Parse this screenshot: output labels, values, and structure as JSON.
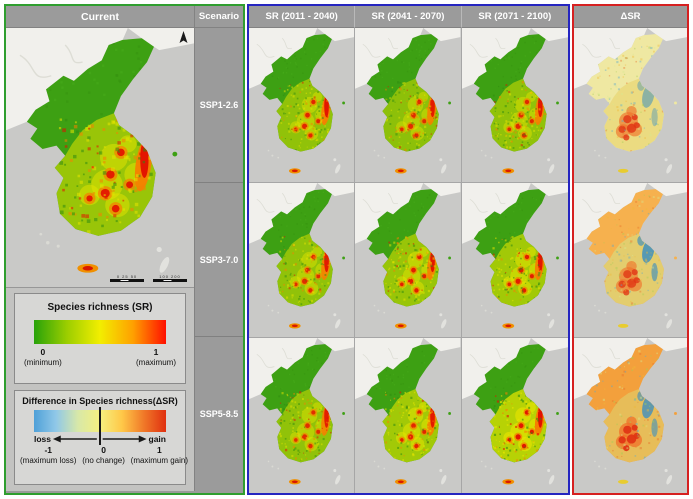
{
  "figure": {
    "headers": {
      "current": "Current",
      "scenario": "Scenario",
      "sr_periods": [
        "SR (2011 - 2040)",
        "SR (2041 - 2070)",
        "SR (2071 - 2100)"
      ],
      "dsr": "ΔSR"
    },
    "scenarios": [
      "SSP1-2.6",
      "SSP3-7.0",
      "SSP5-8.5"
    ],
    "panel_border_colors": {
      "current": "#2f9e2f",
      "sr": "#2525c0",
      "dsr": "#d62020"
    },
    "legend_sr": {
      "title": "Species richness (SR)",
      "min_value": "0",
      "min_label": "(minimum)",
      "max_value": "1",
      "max_label": "(maximum)",
      "gradient": [
        "#28a20a",
        "#9cce00",
        "#f2ee00",
        "#ffa000",
        "#ff1000"
      ]
    },
    "legend_dsr": {
      "title": "Difference in Species richness(ΔSR)",
      "loss_label": "loss",
      "gain_label": "gain",
      "min_value": "-1",
      "min_label": "(maximum loss)",
      "mid_value": "0",
      "mid_label": "(no change)",
      "max_value": "1",
      "max_label": "(maximum gain)",
      "gradient": [
        "#4fa0d8",
        "#90c8e8",
        "#d8e8a8",
        "#f5f080",
        "#ffc848",
        "#f07828",
        "#e03010"
      ]
    },
    "scalebar": {
      "left": "0 25 50",
      "right": "100 200"
    }
  },
  "maps": {
    "sea_color": "#c9c9c7",
    "outside_land_color": "#f1f0ec",
    "sr_palette": {
      "north": "#3da013",
      "yellow": "#e6e400",
      "orange": "#f58000",
      "red": "#e21000"
    },
    "dsr_palette": {
      "blue": "#3e8fbf",
      "red": "#e03414"
    },
    "current": {
      "kind": "sr",
      "yellow": 0.55,
      "east": 0.95,
      "spots": 0.9,
      "noise": 0.55
    },
    "rows": [
      {
        "cells": [
          {
            "kind": "sr",
            "yellow": 0.5,
            "east": 0.95,
            "spots": 0.85,
            "noise": 0.5
          },
          {
            "kind": "sr",
            "yellow": 0.48,
            "east": 0.9,
            "spots": 0.8,
            "noise": 0.48
          },
          {
            "kind": "sr",
            "yellow": 0.5,
            "east": 0.92,
            "spots": 0.82,
            "noise": 0.5
          },
          {
            "kind": "dsr",
            "north": "#efe8a2",
            "sk": "#e8d470",
            "blue": 0.55,
            "red": 0.8,
            "noise": 0.5
          }
        ]
      },
      {
        "cells": [
          {
            "kind": "sr",
            "yellow": 0.5,
            "east": 0.9,
            "spots": 0.8,
            "noise": 0.5
          },
          {
            "kind": "sr",
            "yellow": 0.55,
            "east": 0.95,
            "spots": 0.9,
            "noise": 0.52
          },
          {
            "kind": "sr",
            "yellow": 0.6,
            "east": 0.95,
            "spots": 0.9,
            "noise": 0.55
          },
          {
            "kind": "dsr",
            "north": "#f6b14e",
            "sk": "#d8dc80",
            "blue": 0.85,
            "red": 0.78,
            "noise": 0.5
          }
        ]
      },
      {
        "cells": [
          {
            "kind": "sr",
            "yellow": 0.5,
            "east": 0.88,
            "spots": 0.78,
            "noise": 0.5
          },
          {
            "kind": "sr",
            "yellow": 0.6,
            "east": 0.92,
            "spots": 0.85,
            "noise": 0.55
          },
          {
            "kind": "sr",
            "yellow": 0.72,
            "east": 1.0,
            "spots": 0.95,
            "noise": 0.6
          },
          {
            "kind": "dsr",
            "north": "#f3a03c",
            "sk": "#e0cc68",
            "blue": 0.8,
            "red": 0.92,
            "noise": 0.55
          }
        ]
      }
    ]
  }
}
